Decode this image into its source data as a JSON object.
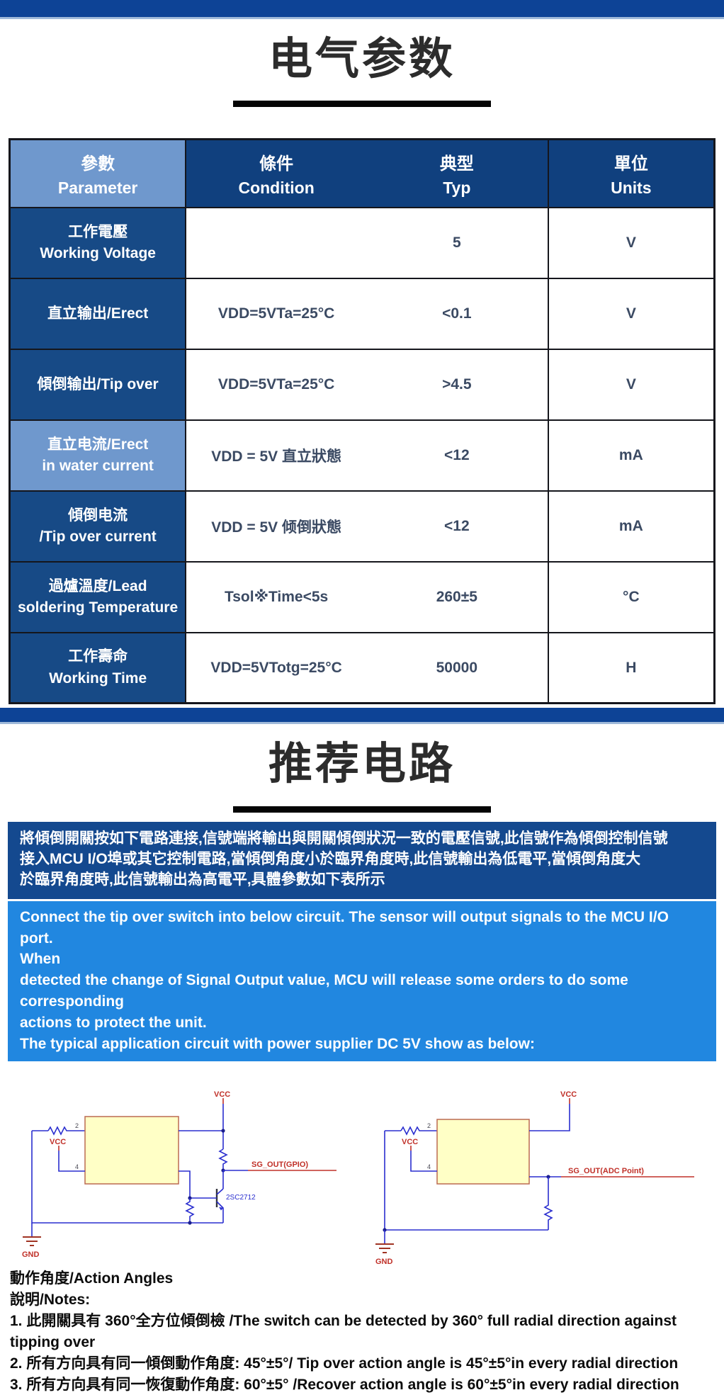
{
  "colors": {
    "bar_blue": "#0d4396",
    "bar_edge_light": "#9fb9da",
    "header_dark_blue": "#10407e",
    "header_light_blue": "#6f98cd",
    "param_col_blue": "#174a86",
    "zh_box_blue": "#14498f",
    "en_box_blue": "#2187e0",
    "schematic_box_yellow": "#ffffc6",
    "schematic_wire_blue": "#2a2ecf",
    "schematic_label_red": "#c03028"
  },
  "section1": {
    "title": "电气参数"
  },
  "table": {
    "headers": [
      {
        "zh": "參數",
        "en": "Parameter"
      },
      {
        "zh": "條件",
        "en": "Condition"
      },
      {
        "zh": "典型",
        "en": "Typ"
      },
      {
        "zh": "單位",
        "en": "Units"
      }
    ],
    "rows": [
      {
        "param_zh": "工作電壓",
        "param_en": "Working Voltage",
        "condition": "",
        "typ": "5",
        "units": "V",
        "highlight": false
      },
      {
        "param_zh": "直立输出/Erect",
        "param_en": "",
        "condition": "VDD=5VTa=25°C",
        "typ": "<0.1",
        "units": "V",
        "highlight": false
      },
      {
        "param_zh": "傾倒输出/Tip over",
        "param_en": "",
        "condition": "VDD=5VTa=25°C",
        "typ": ">4.5",
        "units": "V",
        "highlight": false
      },
      {
        "param_zh": "直立电流/Erect",
        "param_en": "in water current",
        "condition": "VDD = 5V 直立狀態",
        "typ": "<12",
        "units": "mA",
        "highlight": true
      },
      {
        "param_zh": "傾倒电流",
        "param_en": "/Tip over current",
        "condition": "VDD = 5V 倾倒狀態",
        "typ": "<12",
        "units": "mA",
        "highlight": false
      },
      {
        "param_zh": "過爐溫度/Lead",
        "param_en": "soldering Temperature",
        "condition": "Tsol※Time<5s",
        "typ": "260±5",
        "units": "°C",
        "highlight": false
      },
      {
        "param_zh": "工作壽命",
        "param_en": "Working Time",
        "condition": "VDD=5VTotg=25°C",
        "typ": "50000",
        "units": "H",
        "highlight": false
      }
    ]
  },
  "section2": {
    "title": "推荐电路"
  },
  "desc_zh": {
    "lines": [
      "將傾倒開關按如下電路連接,信號端將輸出與開關傾倒狀況一致的電壓信號,此信號作為傾倒控制信號",
      "接入MCU I/O埠或其它控制電路,當傾倒角度小於臨界角度時,此信號輸出為低電平,當傾倒角度大",
      "於臨界角度時,此信號輸出為高電平,具體參數如下表所示"
    ]
  },
  "desc_en": {
    "lines": [
      "Connect the tip over switch into below circuit. The sensor will output signals to the MCU I/O port.",
      "When",
      "detected the change of Signal Output value, MCU will release some orders to do some",
      "corresponding",
      "actions to protect the unit.",
      "The typical application circuit with power supplier DC 5V show as below:"
    ]
  },
  "circuit_left": {
    "vcc_top": "VCC",
    "vcc_left": "VCC",
    "pin2": "2",
    "pin4": "4",
    "out_label": "SG_OUT(GPIO)",
    "transistor": "2SC2712",
    "gnd": "GND"
  },
  "circuit_right": {
    "vcc_top": "VCC",
    "vcc_left": "VCC",
    "pin2": "2",
    "pin4": "4",
    "out_label": "SG_OUT(ADC Point)",
    "gnd": "GND"
  },
  "notes": {
    "lines": [
      "動作角度/Action Angles",
      "說明/Notes:",
      "1. 此開關具有 360°全方位傾倒檢 /The switch can be detected by 360° full radial direction against tipping over",
      " 2. 所有方向具有同一傾倒動作角度: 45°±5°/ Tip over action angle is 45°±5°in every radial direction",
      " 3. 所有方向具有同一恢復動作角度: 60°±5° /Recover action angle is 60°±5°in every radial direction"
    ]
  }
}
